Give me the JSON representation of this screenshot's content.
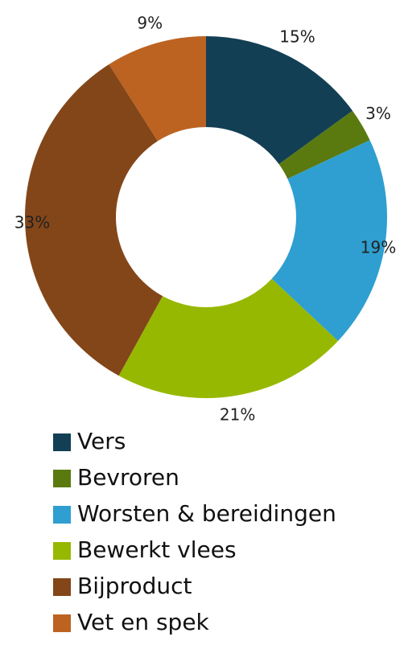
{
  "chart_data": {
    "type": "donut",
    "categories": [
      "Vers",
      "Bevroren",
      "Worsten & bereidingen",
      "Bewerkt vlees",
      "Bijproduct",
      "Vet en spek"
    ],
    "values": [
      15,
      3,
      19,
      21,
      33,
      9
    ],
    "value_labels": [
      "15%",
      "3%",
      "19%",
      "21%",
      "33%",
      "9%"
    ],
    "colors": [
      "#133f55",
      "#5a7a10",
      "#2e9fd0",
      "#97b800",
      "#834619",
      "#bc6322"
    ]
  }
}
